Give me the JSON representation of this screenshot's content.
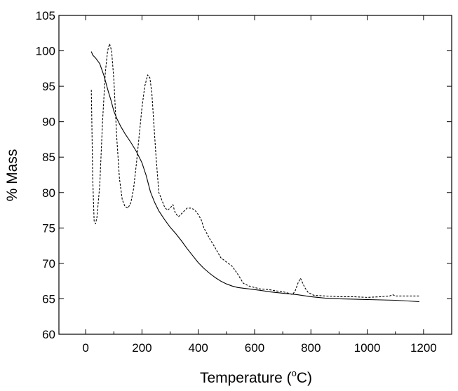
{
  "chart_data": {
    "type": "line",
    "xlabel": "Temperature (°C)",
    "xlabel_parts": {
      "before": "Temperature (",
      "superscript": "o",
      "after": "C)"
    },
    "ylabel": "% Mass",
    "xlim": [
      -95,
      1300
    ],
    "ylim": [
      60,
      105
    ],
    "xticks": [
      0,
      200,
      400,
      600,
      800,
      1000,
      1200
    ],
    "yticks": [
      60,
      65,
      70,
      75,
      80,
      85,
      90,
      95,
      100,
      105
    ],
    "grid": false,
    "legend": "none",
    "series": [
      {
        "style": "solid",
        "color": "#000000",
        "x": [
          20,
          25,
          35,
          50,
          65,
          80,
          90,
          100,
          110,
          125,
          140,
          160,
          180,
          200,
          215,
          230,
          245,
          260,
          280,
          300,
          320,
          340,
          360,
          380,
          400,
          420,
          440,
          460,
          480,
          500,
          520,
          540,
          560,
          580,
          600,
          620,
          650,
          700,
          750,
          800,
          850,
          900,
          1000,
          1100,
          1185
        ],
        "y": [
          99.9,
          99.4,
          99.0,
          98.2,
          96.5,
          94.3,
          93.0,
          91.5,
          90.5,
          89.3,
          88.3,
          87.1,
          85.8,
          84.2,
          82.4,
          80.1,
          78.6,
          77.4,
          76.2,
          75.1,
          74.2,
          73.2,
          72.1,
          71.1,
          70.1,
          69.3,
          68.6,
          68.0,
          67.5,
          67.1,
          66.8,
          66.6,
          66.5,
          66.4,
          66.3,
          66.2,
          66.0,
          65.8,
          65.6,
          65.3,
          65.1,
          65.0,
          64.9,
          64.8,
          64.6
        ]
      },
      {
        "style": "dashed",
        "color": "#000000",
        "x": [
          20,
          25,
          30,
          35,
          40,
          50,
          60,
          70,
          78,
          85,
          92,
          100,
          110,
          120,
          130,
          140,
          150,
          160,
          170,
          180,
          190,
          200,
          210,
          220,
          228,
          235,
          240,
          250,
          260,
          270,
          280,
          290,
          300,
          310,
          315,
          320,
          330,
          345,
          360,
          375,
          385,
          395,
          410,
          420,
          440,
          460,
          480,
          500,
          520,
          540,
          560,
          580,
          600,
          620,
          650,
          680,
          700,
          720,
          735,
          745,
          755,
          763,
          770,
          778,
          790,
          810,
          850,
          900,
          950,
          1000,
          1050,
          1080,
          1090,
          1100,
          1150,
          1185
        ],
        "y": [
          94.5,
          82.0,
          76.0,
          75.6,
          76.5,
          81.0,
          90.0,
          97.0,
          100.0,
          101.0,
          100.0,
          96.0,
          88.0,
          82.0,
          79.0,
          78.0,
          77.8,
          78.5,
          80.5,
          84.0,
          88.0,
          92.0,
          95.0,
          96.6,
          96.2,
          94.0,
          91.0,
          85.0,
          80.0,
          79.0,
          78.0,
          77.5,
          77.8,
          78.3,
          77.5,
          77.0,
          76.6,
          77.2,
          77.8,
          77.8,
          77.6,
          77.2,
          76.2,
          75.0,
          73.5,
          72.2,
          70.8,
          70.2,
          69.6,
          68.5,
          67.2,
          66.8,
          66.6,
          66.4,
          66.3,
          66.1,
          66.0,
          65.8,
          65.6,
          66.2,
          67.3,
          67.9,
          67.3,
          66.6,
          65.9,
          65.5,
          65.4,
          65.3,
          65.3,
          65.2,
          65.3,
          65.4,
          65.6,
          65.4,
          65.4,
          65.4
        ]
      }
    ]
  }
}
